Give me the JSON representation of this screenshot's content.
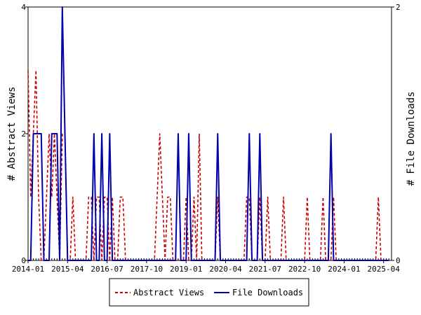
{
  "chart_data": {
    "type": "line",
    "title": "",
    "y_left_label": "# Abstract Views",
    "y_right_label": "# File Downloads",
    "x_ticks": [
      "2014-01",
      "2015-04",
      "2016-07",
      "2017-10",
      "2019-01",
      "2020-04",
      "2021-07",
      "2022-10",
      "2024-01",
      "2025-04"
    ],
    "y_left_ticks": [
      "0",
      "2",
      "4"
    ],
    "y_right_ticks": [
      "0",
      "2"
    ],
    "y_left_range": [
      0,
      4
    ],
    "y_right_range": [
      0,
      2
    ],
    "x_range": [
      "2014-01",
      "2025-06"
    ],
    "series": [
      {
        "name": "Abstract Views",
        "axis": "left",
        "color": "#cc0000",
        "dash": "dashed",
        "points": [
          [
            "2014-01",
            3
          ],
          [
            "2014-02",
            1
          ],
          [
            "2014-03",
            2
          ],
          [
            "2014-04",
            3
          ],
          [
            "2014-05",
            1
          ],
          [
            "2014-06",
            0
          ],
          [
            "2014-07",
            0
          ],
          [
            "2014-08",
            1
          ],
          [
            "2014-09",
            2
          ],
          [
            "2014-10",
            1
          ],
          [
            "2014-11",
            2
          ],
          [
            "2014-12",
            1
          ],
          [
            "2015-01",
            0
          ],
          [
            "2015-02",
            2
          ],
          [
            "2015-03",
            2
          ],
          [
            "2015-04",
            0
          ],
          [
            "2015-05",
            0
          ],
          [
            "2015-06",
            1
          ],
          [
            "2015-07",
            0
          ],
          [
            "2015-08",
            0
          ],
          [
            "2015-09",
            0
          ],
          [
            "2015-10",
            0
          ],
          [
            "2015-11",
            0
          ],
          [
            "2015-12",
            1
          ],
          [
            "2016-01",
            1
          ],
          [
            "2016-02",
            0
          ],
          [
            "2016-03",
            1
          ],
          [
            "2016-04",
            1
          ],
          [
            "2016-05",
            0
          ],
          [
            "2016-06",
            1
          ],
          [
            "2016-07",
            1
          ],
          [
            "2016-08",
            0
          ],
          [
            "2016-09",
            1
          ],
          [
            "2016-10",
            0
          ],
          [
            "2016-11",
            0
          ],
          [
            "2016-12",
            1
          ],
          [
            "2017-01",
            1
          ],
          [
            "2017-02",
            0
          ],
          [
            "2017-03",
            0
          ],
          [
            "2017-04",
            0
          ],
          [
            "2017-05",
            0
          ],
          [
            "2017-06",
            0
          ],
          [
            "2017-07",
            0
          ],
          [
            "2017-08",
            0
          ],
          [
            "2017-09",
            0
          ],
          [
            "2017-10",
            0
          ],
          [
            "2017-11",
            0
          ],
          [
            "2017-12",
            0
          ],
          [
            "2018-01",
            0
          ],
          [
            "2018-02",
            1
          ],
          [
            "2018-03",
            2
          ],
          [
            "2018-04",
            1
          ],
          [
            "2018-05",
            0
          ],
          [
            "2018-06",
            1
          ],
          [
            "2018-07",
            1
          ],
          [
            "2018-08",
            0
          ],
          [
            "2018-09",
            0
          ],
          [
            "2018-10",
            0
          ],
          [
            "2018-11",
            0
          ],
          [
            "2018-12",
            0
          ],
          [
            "2019-01",
            1
          ],
          [
            "2019-02",
            0
          ],
          [
            "2019-03",
            0
          ],
          [
            "2019-04",
            1
          ],
          [
            "2019-05",
            0
          ],
          [
            "2019-06",
            2
          ],
          [
            "2019-07",
            0
          ],
          [
            "2019-08",
            0
          ],
          [
            "2019-09",
            0
          ],
          [
            "2019-10",
            0
          ],
          [
            "2019-11",
            0
          ],
          [
            "2019-12",
            0
          ],
          [
            "2020-01",
            1
          ],
          [
            "2020-02",
            0
          ],
          [
            "2020-03",
            0
          ],
          [
            "2020-04",
            0
          ],
          [
            "2020-05",
            0
          ],
          [
            "2020-06",
            0
          ],
          [
            "2020-07",
            0
          ],
          [
            "2020-08",
            0
          ],
          [
            "2020-09",
            0
          ],
          [
            "2020-10",
            0
          ],
          [
            "2020-11",
            0
          ],
          [
            "2020-12",
            1
          ],
          [
            "2021-01",
            1
          ],
          [
            "2021-02",
            0
          ],
          [
            "2021-03",
            0
          ],
          [
            "2021-04",
            0
          ],
          [
            "2021-05",
            1
          ],
          [
            "2021-06",
            0
          ],
          [
            "2021-07",
            0
          ],
          [
            "2021-08",
            1
          ],
          [
            "2021-09",
            0
          ],
          [
            "2021-10",
            0
          ],
          [
            "2021-11",
            0
          ],
          [
            "2021-12",
            0
          ],
          [
            "2022-01",
            0
          ],
          [
            "2022-02",
            1
          ],
          [
            "2022-03",
            0
          ],
          [
            "2022-04",
            0
          ],
          [
            "2022-05",
            0
          ],
          [
            "2022-06",
            0
          ],
          [
            "2022-07",
            0
          ],
          [
            "2022-08",
            0
          ],
          [
            "2022-09",
            0
          ],
          [
            "2022-10",
            0
          ],
          [
            "2022-11",
            1
          ],
          [
            "2022-12",
            0
          ],
          [
            "2023-01",
            0
          ],
          [
            "2023-02",
            0
          ],
          [
            "2023-03",
            0
          ],
          [
            "2023-04",
            0
          ],
          [
            "2023-05",
            1
          ],
          [
            "2023-06",
            0
          ],
          [
            "2023-07",
            0
          ],
          [
            "2023-08",
            0
          ],
          [
            "2023-09",
            1
          ],
          [
            "2023-10",
            0
          ],
          [
            "2023-11",
            0
          ],
          [
            "2023-12",
            0
          ],
          [
            "2024-01",
            0
          ],
          [
            "2024-02",
            0
          ],
          [
            "2024-03",
            0
          ],
          [
            "2024-04",
            0
          ],
          [
            "2024-05",
            0
          ],
          [
            "2024-06",
            0
          ],
          [
            "2024-07",
            0
          ],
          [
            "2024-08",
            0
          ],
          [
            "2024-09",
            0
          ],
          [
            "2024-10",
            0
          ],
          [
            "2024-11",
            0
          ],
          [
            "2024-12",
            0
          ],
          [
            "2025-01",
            0
          ],
          [
            "2025-02",
            1
          ],
          [
            "2025-03",
            0
          ],
          [
            "2025-04",
            0
          ],
          [
            "2025-05",
            0
          ],
          [
            "2025-06",
            0
          ]
        ]
      },
      {
        "name": "File Downloads",
        "axis": "right",
        "color": "#0000aa",
        "dash": "solid",
        "points": [
          [
            "2014-01",
            0
          ],
          [
            "2014-02",
            0
          ],
          [
            "2014-03",
            1
          ],
          [
            "2014-04",
            1
          ],
          [
            "2014-05",
            1
          ],
          [
            "2014-06",
            1
          ],
          [
            "2014-07",
            0
          ],
          [
            "2014-08",
            0
          ],
          [
            "2014-09",
            0
          ],
          [
            "2014-10",
            1
          ],
          [
            "2014-11",
            1
          ],
          [
            "2014-12",
            1
          ],
          [
            "2015-01",
            0
          ],
          [
            "2015-02",
            2
          ],
          [
            "2015-03",
            1
          ],
          [
            "2015-04",
            0
          ],
          [
            "2015-05",
            0
          ],
          [
            "2015-06",
            0
          ],
          [
            "2015-07",
            0
          ],
          [
            "2015-08",
            0
          ],
          [
            "2015-09",
            0
          ],
          [
            "2015-10",
            0
          ],
          [
            "2015-11",
            0
          ],
          [
            "2015-12",
            0
          ],
          [
            "2016-01",
            0
          ],
          [
            "2016-02",
            1
          ],
          [
            "2016-03",
            0
          ],
          [
            "2016-04",
            0
          ],
          [
            "2016-05",
            1
          ],
          [
            "2016-06",
            0
          ],
          [
            "2016-07",
            0
          ],
          [
            "2016-08",
            1
          ],
          [
            "2016-09",
            0
          ],
          [
            "2016-10",
            0
          ],
          [
            "2016-11",
            0
          ],
          [
            "2016-12",
            0
          ],
          [
            "2017-01",
            0
          ],
          [
            "2017-02",
            0
          ],
          [
            "2017-03",
            0
          ],
          [
            "2017-04",
            0
          ],
          [
            "2017-05",
            0
          ],
          [
            "2017-06",
            0
          ],
          [
            "2017-07",
            0
          ],
          [
            "2017-08",
            0
          ],
          [
            "2017-09",
            0
          ],
          [
            "2017-10",
            0
          ],
          [
            "2017-11",
            0
          ],
          [
            "2017-12",
            0
          ],
          [
            "2018-01",
            0
          ],
          [
            "2018-02",
            0
          ],
          [
            "2018-03",
            0
          ],
          [
            "2018-04",
            0
          ],
          [
            "2018-05",
            0
          ],
          [
            "2018-06",
            0
          ],
          [
            "2018-07",
            0
          ],
          [
            "2018-08",
            0
          ],
          [
            "2018-09",
            0
          ],
          [
            "2018-10",
            1
          ],
          [
            "2018-11",
            0
          ],
          [
            "2018-12",
            0
          ],
          [
            "2019-01",
            0
          ],
          [
            "2019-02",
            1
          ],
          [
            "2019-03",
            0
          ],
          [
            "2019-04",
            0
          ],
          [
            "2019-05",
            0
          ],
          [
            "2019-06",
            0
          ],
          [
            "2019-07",
            0
          ],
          [
            "2019-08",
            0
          ],
          [
            "2019-09",
            0
          ],
          [
            "2019-10",
            0
          ],
          [
            "2019-11",
            0
          ],
          [
            "2019-12",
            0
          ],
          [
            "2020-01",
            1
          ],
          [
            "2020-02",
            0
          ],
          [
            "2020-03",
            0
          ],
          [
            "2020-04",
            0
          ],
          [
            "2020-05",
            0
          ],
          [
            "2020-06",
            0
          ],
          [
            "2020-07",
            0
          ],
          [
            "2020-08",
            0
          ],
          [
            "2020-09",
            0
          ],
          [
            "2020-10",
            0
          ],
          [
            "2020-11",
            0
          ],
          [
            "2020-12",
            0
          ],
          [
            "2021-01",
            1
          ],
          [
            "2021-02",
            0
          ],
          [
            "2021-03",
            0
          ],
          [
            "2021-04",
            0
          ],
          [
            "2021-05",
            1
          ],
          [
            "2021-06",
            0
          ],
          [
            "2021-07",
            0
          ],
          [
            "2021-08",
            0
          ],
          [
            "2021-09",
            0
          ],
          [
            "2021-10",
            0
          ],
          [
            "2021-11",
            0
          ],
          [
            "2021-12",
            0
          ],
          [
            "2022-01",
            0
          ],
          [
            "2022-02",
            0
          ],
          [
            "2022-03",
            0
          ],
          [
            "2022-04",
            0
          ],
          [
            "2022-05",
            0
          ],
          [
            "2022-06",
            0
          ],
          [
            "2022-07",
            0
          ],
          [
            "2022-08",
            0
          ],
          [
            "2022-09",
            0
          ],
          [
            "2022-10",
            0
          ],
          [
            "2022-11",
            0
          ],
          [
            "2022-12",
            0
          ],
          [
            "2023-01",
            0
          ],
          [
            "2023-02",
            0
          ],
          [
            "2023-03",
            0
          ],
          [
            "2023-04",
            0
          ],
          [
            "2023-05",
            0
          ],
          [
            "2023-06",
            0
          ],
          [
            "2023-07",
            0
          ],
          [
            "2023-08",
            1
          ],
          [
            "2023-09",
            0
          ],
          [
            "2023-10",
            0
          ],
          [
            "2023-11",
            0
          ],
          [
            "2023-12",
            0
          ],
          [
            "2024-01",
            0
          ],
          [
            "2024-02",
            0
          ],
          [
            "2024-03",
            0
          ],
          [
            "2024-04",
            0
          ],
          [
            "2024-05",
            0
          ],
          [
            "2024-06",
            0
          ],
          [
            "2024-07",
            0
          ],
          [
            "2024-08",
            0
          ],
          [
            "2024-09",
            0
          ],
          [
            "2024-10",
            0
          ],
          [
            "2024-11",
            0
          ],
          [
            "2024-12",
            0
          ],
          [
            "2025-01",
            0
          ],
          [
            "2025-02",
            0
          ],
          [
            "2025-03",
            0
          ],
          [
            "2025-04",
            0
          ],
          [
            "2025-05",
            0
          ],
          [
            "2025-06",
            0
          ]
        ]
      }
    ],
    "legend": {
      "placement": "bottom-center",
      "entries": [
        "Abstract Views",
        "File Downloads"
      ]
    }
  }
}
